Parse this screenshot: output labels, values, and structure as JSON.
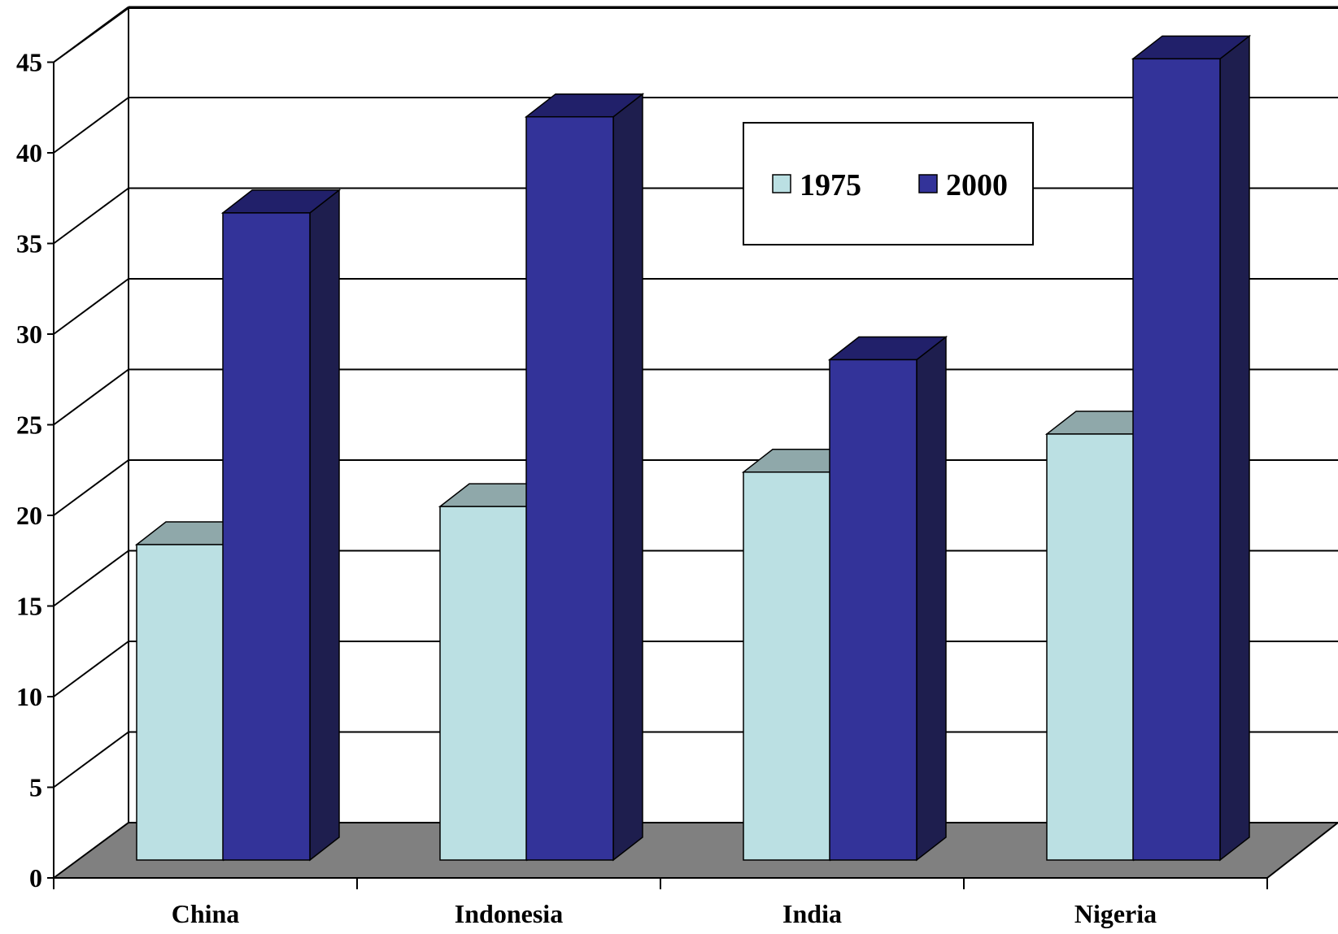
{
  "chart_data": {
    "type": "bar",
    "style": "3d-clustered-column",
    "title": "",
    "xlabel": "",
    "ylabel": "",
    "categories": [
      "China",
      "Indonesia",
      "India",
      "Nigeria"
    ],
    "series": [
      {
        "name": "1975",
        "values": [
          17.4,
          19.5,
          21.4,
          23.5
        ],
        "color": "#BBE0E3",
        "top_color": "#8FA8AA",
        "side_color": "#8FA8AA"
      },
      {
        "name": "2000",
        "values": [
          35.7,
          41.0,
          27.6,
          44.2
        ],
        "color": "#333399",
        "top_color": "#21206A",
        "side_color": "#1E1E4E"
      }
    ],
    "ylim": [
      0,
      45
    ],
    "yticks": [
      "0",
      "5",
      "10",
      "15",
      "20",
      "25",
      "30",
      "35",
      "40",
      "45"
    ],
    "grid": true,
    "legend_position": "top-right",
    "floor_color": "#808080"
  }
}
